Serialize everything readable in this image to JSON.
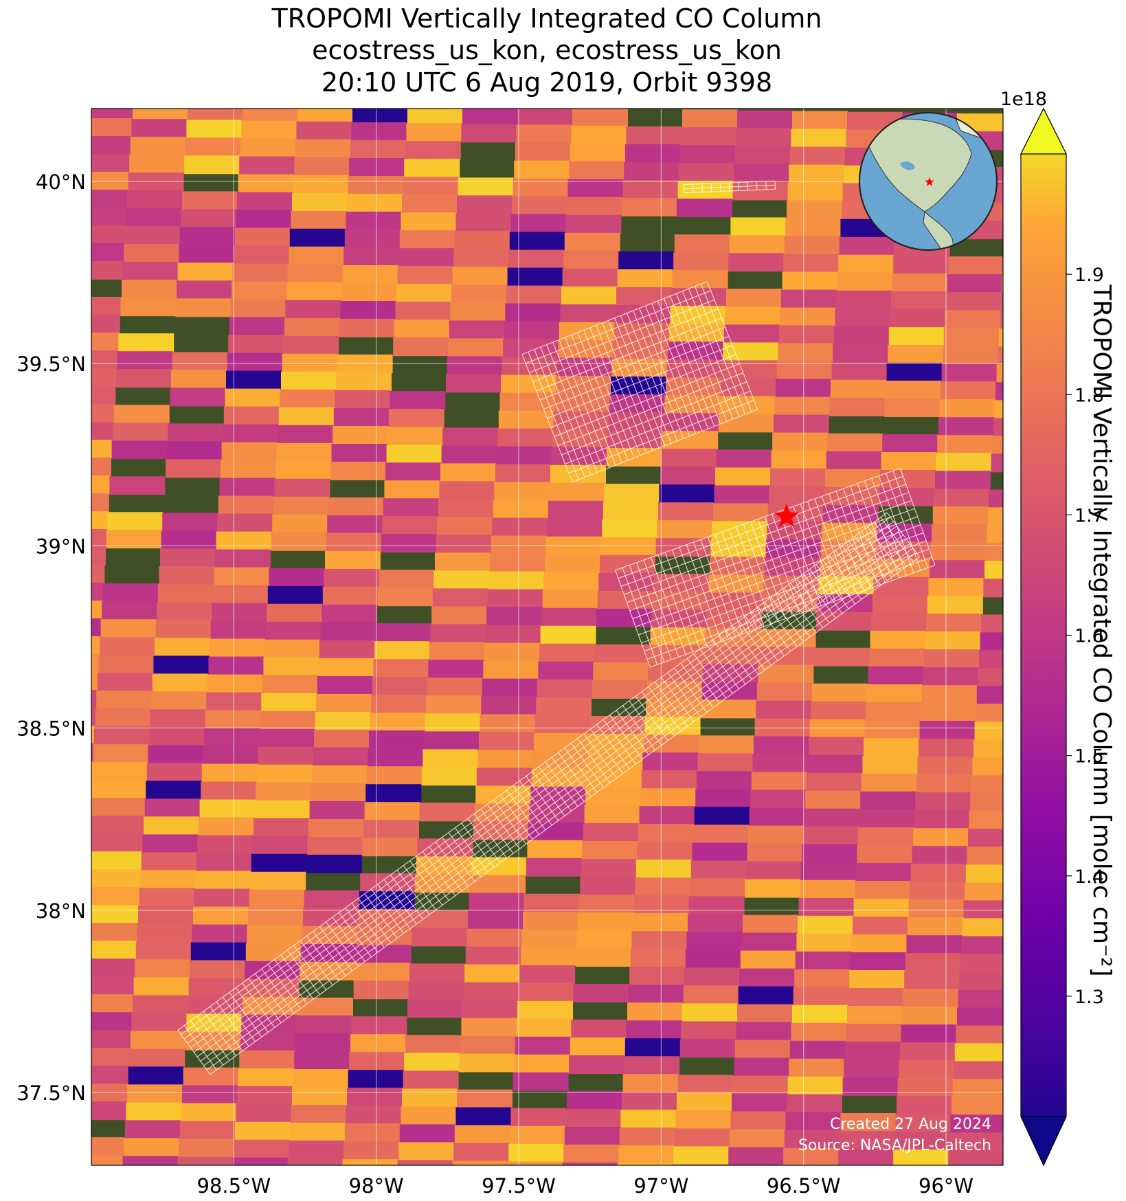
{
  "title": {
    "line1": "TROPOMI Vertically Integrated CO Column",
    "line2": "ecostress_us_kon, ecostress_us_kon",
    "line3": "20:10 UTC 6 Aug 2019, Orbit 9398"
  },
  "map": {
    "lon_range": [
      -99.0,
      -95.8
    ],
    "lat_range": [
      37.3,
      40.2
    ],
    "lon_ticks": [
      -98.5,
      -98.0,
      -97.5,
      -97.0,
      -96.5,
      -96.0
    ],
    "lat_ticks": [
      37.5,
      38.0,
      38.5,
      39.0,
      39.5,
      40.0
    ],
    "lon_tick_labels": [
      "98.5°W",
      "98°W",
      "97.5°W",
      "97°W",
      "96.5°W",
      "96°W"
    ],
    "lat_tick_labels": [
      "37.5°N",
      "38°N",
      "38.5°N",
      "39°N",
      "39.5°N",
      "40°N"
    ],
    "gridlines": true,
    "basemap": "satellite imagery (farmland)",
    "site_marker": {
      "symbol": "star",
      "color": "#ff0000",
      "lon": -96.56,
      "lat": 39.08
    }
  },
  "colorbar": {
    "label": "TROPOMI Vertically Integrated CO Column [molec cm⁻²]",
    "multiplier": "1e18",
    "colormap": "plasma",
    "range": [
      1.2,
      2.0
    ],
    "ticks": [
      1.3,
      1.4,
      1.5,
      1.6,
      1.7,
      1.8,
      1.9
    ],
    "tick_labels": [
      "1.3",
      "1.4",
      "1.5",
      "1.6",
      "1.7",
      "1.8",
      "1.9"
    ],
    "extend": "both"
  },
  "inset_globe": {
    "marker": "red star over central United States"
  },
  "credits": {
    "created": "Created 27 Aug 2024",
    "source": "Source: NASA/JPL-Caltech"
  },
  "colors": {
    "star": "#ff0000",
    "grid": "#ffffff",
    "ocean": "#6aa6d2",
    "land": "#c9d9b5"
  }
}
